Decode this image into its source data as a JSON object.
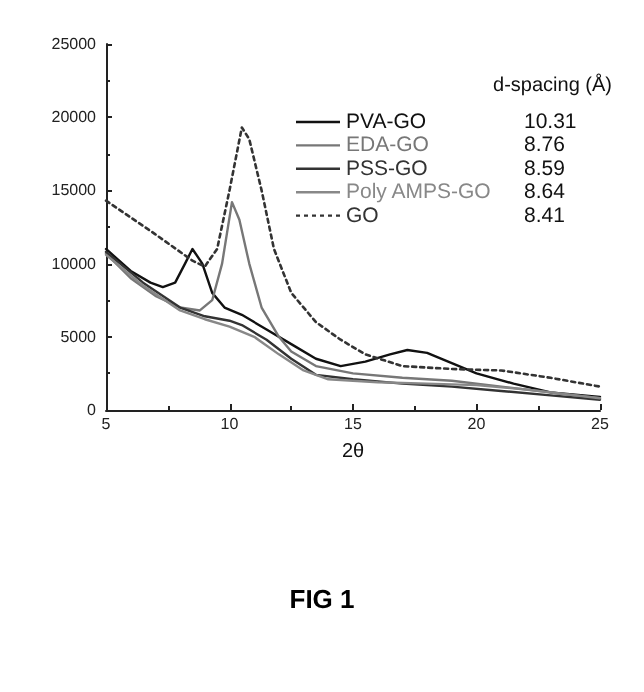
{
  "chart_data": {
    "type": "line",
    "title": "FIG 1",
    "xlabel": "2θ",
    "annotations": [
      "d-spacing (Å)",
      "10.31",
      "8.76",
      "8.59",
      "8.64",
      "8.41"
    ],
    "xlim": [
      5,
      25
    ],
    "xticks": [
      5,
      10,
      15,
      20,
      25
    ],
    "ylim": [
      0,
      25000
    ],
    "yticks": [
      0,
      5000,
      10000,
      15000,
      20000,
      25000
    ],
    "grid": false,
    "legend": "top right",
    "marker": "none",
    "series": [
      {
        "name": "PVA-GO",
        "color": "#111111",
        "x": [
          5,
          6,
          6.8,
          7.3,
          7.8,
          8.2,
          8.5,
          8.9,
          9.3,
          9.8,
          10.5,
          11.5,
          12.5,
          13.5,
          14.5,
          15.5,
          16.5,
          17.2,
          18,
          19,
          20,
          21.5,
          23,
          25
        ],
        "values": [
          11000,
          9500,
          8700,
          8400,
          8700,
          10000,
          11000,
          10000,
          8000,
          7000,
          6500,
          5500,
          4500,
          3500,
          3000,
          3300,
          3800,
          4100,
          3900,
          3200,
          2500,
          1800,
          1200,
          900
        ]
      },
      {
        "name": "EDA-GO",
        "color": "#777777",
        "x": [
          5,
          6,
          7,
          8,
          8.8,
          9.3,
          9.7,
          10.1,
          10.4,
          10.8,
          11.3,
          12,
          12.5,
          13.5,
          15,
          17,
          19,
          21,
          23,
          25
        ],
        "values": [
          10700,
          9000,
          7800,
          7000,
          6800,
          7500,
          10000,
          14200,
          13000,
          10000,
          7000,
          5000,
          4000,
          3000,
          2500,
          2200,
          2000,
          1600,
          1200,
          800
        ]
      },
      {
        "name": "PSS-GO",
        "color": "#333333",
        "x": [
          5,
          6.5,
          8,
          9,
          10,
          10.5,
          11.5,
          12.5,
          13.5,
          15,
          17,
          19,
          21,
          23,
          25
        ],
        "values": [
          10800,
          8700,
          7000,
          6400,
          6100,
          5800,
          4800,
          3500,
          2400,
          2100,
          1800,
          1600,
          1300,
          1000,
          700
        ]
      },
      {
        "name": "Poly AMPS-GO",
        "color": "#888888",
        "x": [
          5,
          6.5,
          8,
          9,
          10,
          11,
          12,
          13,
          14,
          16,
          18,
          20,
          22,
          24,
          25
        ],
        "values": [
          10600,
          8500,
          6800,
          6200,
          5700,
          5000,
          3800,
          2700,
          2100,
          1900,
          1800,
          1700,
          1400,
          1000,
          800
        ]
      },
      {
        "name": "GO",
        "color": "#333333",
        "line_style": "dotted",
        "x": [
          5,
          7,
          8.5,
          9,
          9.5,
          10,
          10.5,
          10.8,
          11.3,
          11.8,
          12.5,
          13.5,
          14.5,
          15.5,
          17,
          19,
          21,
          23,
          25
        ],
        "values": [
          14300,
          12000,
          10200,
          9800,
          11000,
          15000,
          19300,
          18500,
          15000,
          11000,
          8000,
          6000,
          4800,
          3800,
          3000,
          2800,
          2700,
          2200,
          1600
        ]
      }
    ]
  }
}
